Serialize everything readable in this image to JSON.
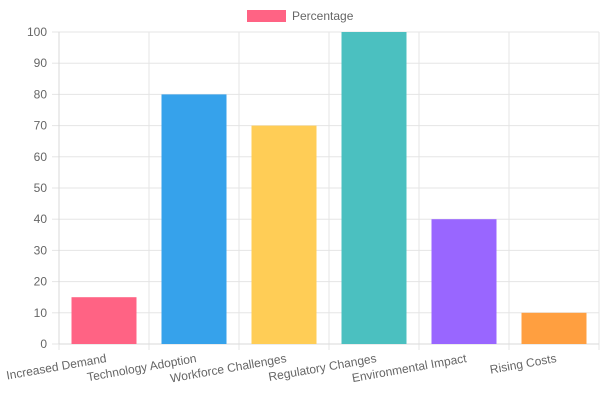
{
  "chart_data": {
    "type": "bar",
    "categories": [
      "Increased Demand",
      "Technology Adoption",
      "Workforce Challenges",
      "Regulatory Changes",
      "Environmental Impact",
      "Rising Costs"
    ],
    "series": [
      {
        "name": "Percentage",
        "values": [
          15,
          80,
          70,
          100,
          40,
          10
        ]
      }
    ],
    "bar_colors": [
      "#ff6384",
      "#36a2eb",
      "#ffcd56",
      "#4bc0c0",
      "#9966ff",
      "#ff9f40"
    ],
    "legend_color": "#ff6384",
    "ylim": [
      0,
      100
    ],
    "yticks": [
      0,
      10,
      20,
      30,
      40,
      50,
      60,
      70,
      80,
      90,
      100
    ],
    "grid": true,
    "legend_position": "top"
  }
}
